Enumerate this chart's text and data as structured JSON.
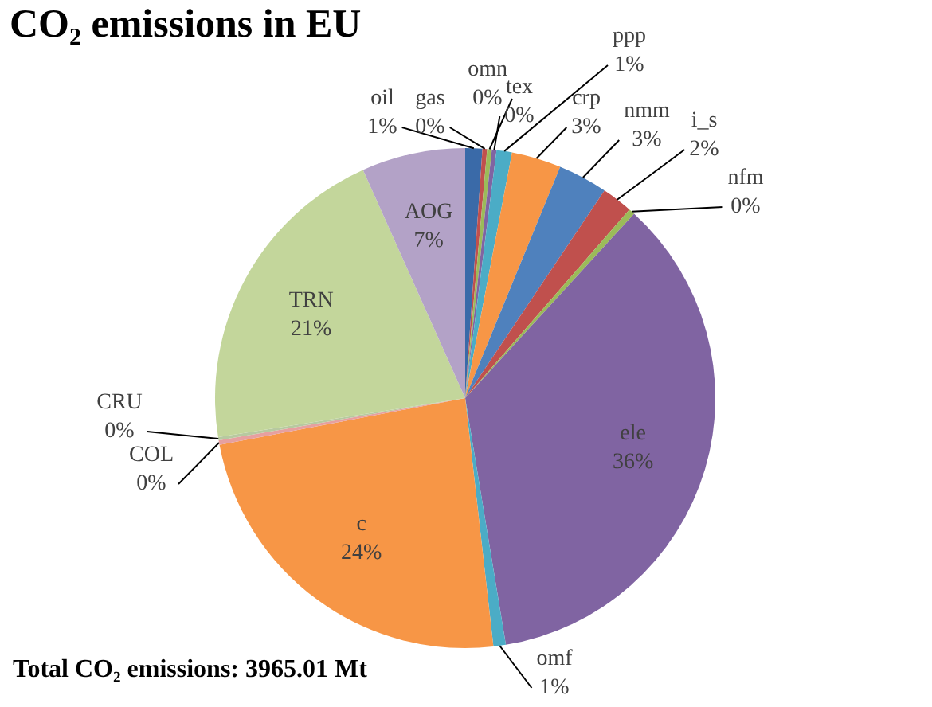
{
  "chart_data": {
    "type": "pie",
    "title": "CO₂ emissions in EU",
    "categories": [
      "oil",
      "gas",
      "omn",
      "tex",
      "ppp",
      "crp",
      "nmm",
      "i_s",
      "nfm",
      "ele",
      "omf",
      "c",
      "COL",
      "CRU",
      "TRN",
      "AOG"
    ],
    "values": [
      1.1,
      0.3,
      0.3,
      0.3,
      1.0,
      3.2,
      3.2,
      2.0,
      0.4,
      35.6,
      0.8,
      23.8,
      0.3,
      0.2,
      20.8,
      6.7
    ],
    "value_labels": [
      "1%",
      "0%",
      "0%",
      "0%",
      "1%",
      "3%",
      "3%",
      "2%",
      "0%",
      "36%",
      "1%",
      "24%",
      "0%",
      "0%",
      "21%",
      "7%"
    ],
    "colors": [
      "#3a6aa8",
      "#c0504d",
      "#9bbb59",
      "#8064a2",
      "#4bacc6",
      "#f79646",
      "#4f81bd",
      "#c0504d",
      "#9bbb59",
      "#8064a2",
      "#4bacc6",
      "#f79646",
      "#e6a0a0",
      "#b7c9a0",
      "#c3d69b",
      "#b3a2c7"
    ],
    "legend": false,
    "annotations": [
      "Total CO₂ emissions: 3965.01 Mt"
    ]
  }
}
